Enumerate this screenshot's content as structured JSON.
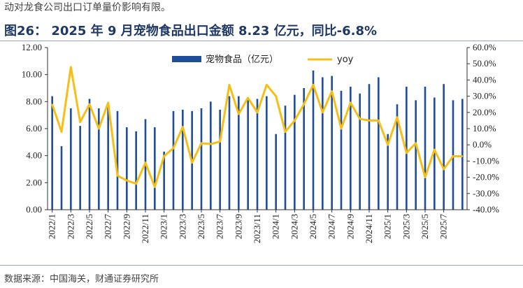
{
  "header": {
    "top_text": "动对龙食公司出口订单量价影响有限。",
    "title": "图26：    2025 年 9 月宠物食品出口金额 8.23 亿元，同比-6.8%"
  },
  "footer": {
    "source": "数据来源：中国海关，财通证券研究所"
  },
  "colors": {
    "bar": "#1f4e99",
    "line": "#f5bf17",
    "title": "#1f3864"
  },
  "chart_data": {
    "type": "bar",
    "categories": [
      "2022/1",
      "2022/2",
      "2022/3",
      "2022/4",
      "2022/5",
      "2022/6",
      "2022/7",
      "2022/8",
      "2022/9",
      "2022/10",
      "2022/11",
      "2022/12",
      "2023/1",
      "2023/2",
      "2023/3",
      "2023/4",
      "2023/5",
      "2023/6",
      "2023/7",
      "2023/8",
      "2023/9",
      "2023/10",
      "2023/11",
      "2023/12",
      "2024/1",
      "2024/2",
      "2024/3",
      "2024/4",
      "2024/5",
      "2024/6",
      "2024/7",
      "2024/8",
      "2024/9",
      "2024/10",
      "2024/11",
      "2024/12",
      "2025/1",
      "2025/2",
      "2025/3",
      "2025/4",
      "2025/5",
      "2025/6",
      "2025/7",
      "2025/8",
      "2025/9"
    ],
    "xtick_labels": [
      "2022/1",
      "2022/3",
      "2022/5",
      "2022/7",
      "2022/9",
      "2022/11",
      "2023/1",
      "2023/3",
      "2023/5",
      "2023/7",
      "2023/9",
      "2023/11",
      "2024/1",
      "2024/3",
      "2024/5",
      "2024/7",
      "2024/9",
      "2024/11",
      "2025/1",
      "2025/3",
      "2025/5",
      "2025/7"
    ],
    "series": [
      {
        "name": "宠物食品（亿元）",
        "kind": "bar",
        "axis": "left",
        "values": [
          8.4,
          4.7,
          7.5,
          6.2,
          8.2,
          7.5,
          7.7,
          7.3,
          6.1,
          5.8,
          6.7,
          6.1,
          4.3,
          7.3,
          7.4,
          7.3,
          7.5,
          8.0,
          7.4,
          8.4,
          8.4,
          8.2,
          8.2,
          8.4,
          5.6,
          7.7,
          8.5,
          9.0,
          10.3,
          9.8,
          9.9,
          8.8,
          9.1,
          8.6,
          9.3,
          9.8,
          5.6,
          7.8,
          9.1,
          8.1,
          9.1,
          8.3,
          9.3,
          8.1,
          8.2
        ]
      },
      {
        "name": "yoy",
        "kind": "line",
        "axis": "right",
        "values": [
          25,
          8,
          48,
          14,
          25,
          10,
          26,
          -19,
          -22,
          -24,
          -11,
          -26,
          -7,
          -2,
          11,
          -11,
          1,
          0.5,
          2,
          37,
          19,
          29,
          20,
          37,
          30,
          8,
          15,
          25,
          37,
          20,
          33,
          10,
          26,
          16,
          15,
          15,
          0,
          17,
          -5,
          1,
          -20,
          -3,
          -15,
          -7,
          -7
        ]
      }
    ],
    "yleft_ticks": [
      "0.00",
      "2.00",
      "4.00",
      "6.00",
      "8.00",
      "10.00",
      "12.00"
    ],
    "yleft_lim": [
      0,
      12
    ],
    "yright_ticks": [
      "-40.0%",
      "-30.0%",
      "-20.0%",
      "-10.0%",
      "0.0%",
      "10.0%",
      "20.0%",
      "30.0%",
      "40.0%",
      "50.0%",
      "60.0%"
    ],
    "yright_lim": [
      -40,
      60
    ],
    "legend_position": "top-center",
    "grid": false
  }
}
